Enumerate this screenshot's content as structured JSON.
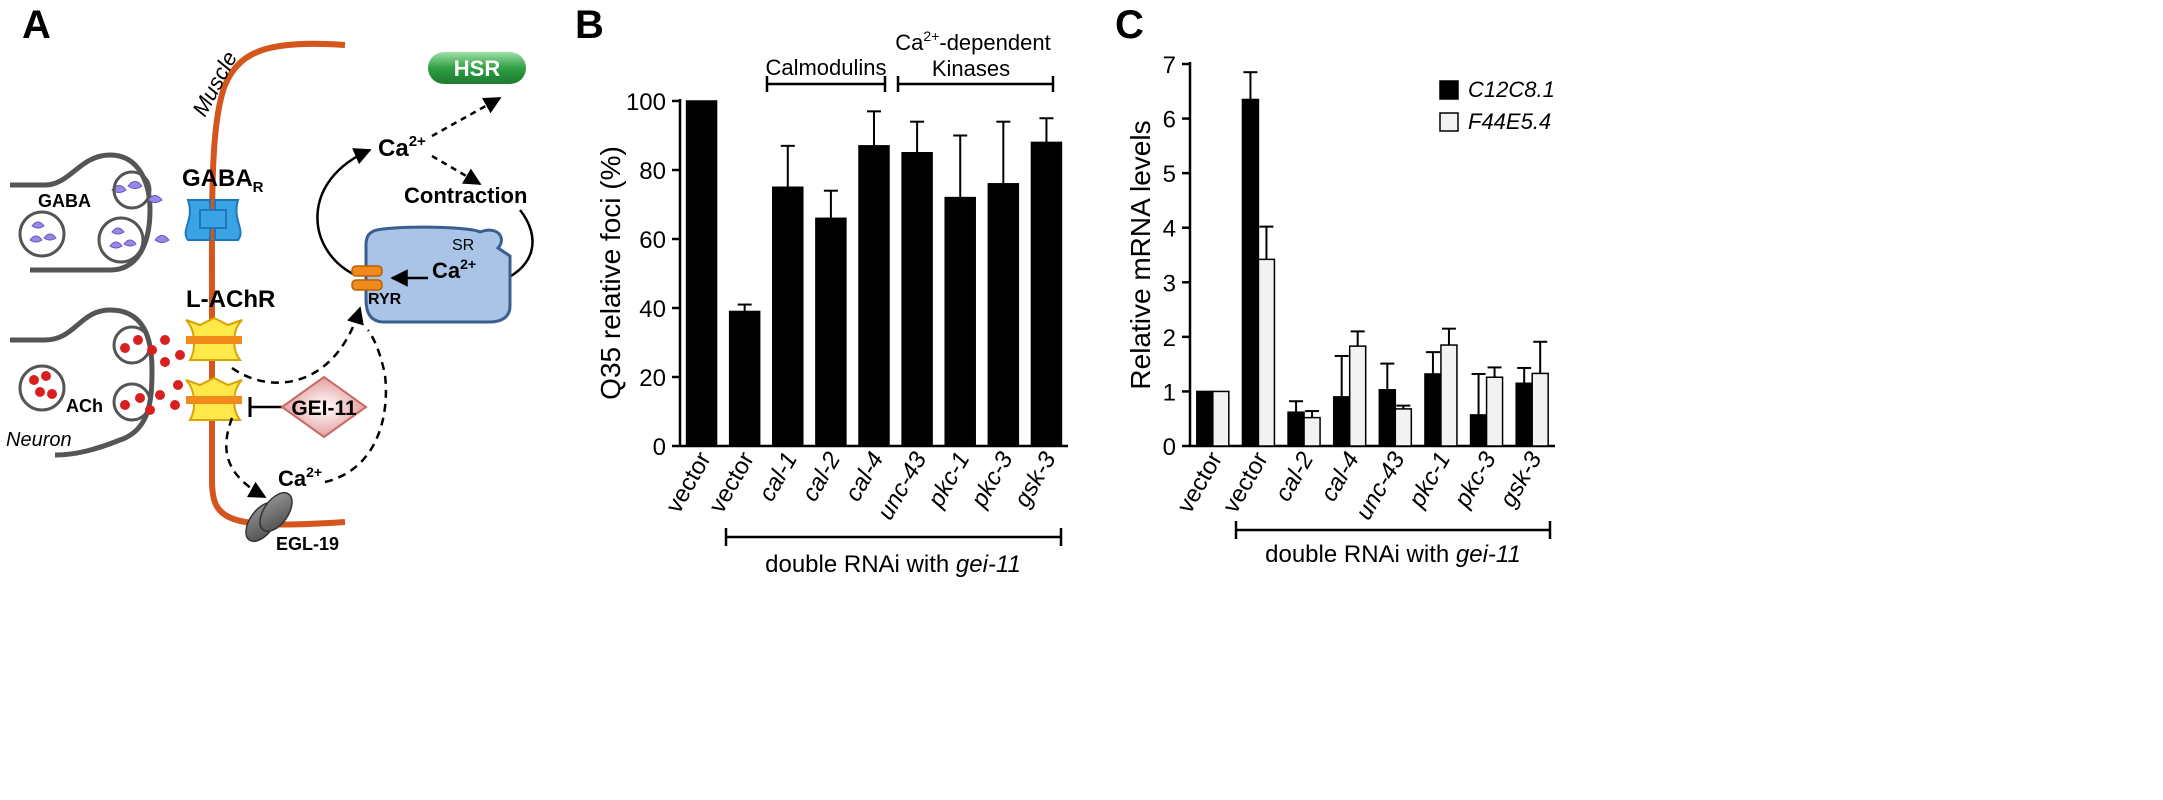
{
  "panels": {
    "A": {
      "letter": "A",
      "labels": {
        "muscle": "Muscle",
        "hsr": "HSR",
        "ca_top": "Ca",
        "ca_top_sup": "2+",
        "contraction": "Contraction",
        "gaba_r": "GABA",
        "gaba_r_sub": "R",
        "gaba": "GABA",
        "sr": "SR",
        "ca_sr": "Ca",
        "ca_sr_sup": "2+",
        "ryr": "RYR",
        "l_achr": "L-AChR",
        "gei11": "GEI-11",
        "ach": "ACh",
        "neuron": "Neuron",
        "ca_bottom": "Ca",
        "ca_bottom_sup": "2+",
        "egl19": "EGL-19"
      },
      "colors": {
        "membrane": "#d4561c",
        "hsr_fill": "#2f9e44",
        "gaba_receptor": "#3aa3e6",
        "gaba_vesicle": "#9b87e8",
        "ach_vesicle": "#d91f1f",
        "achr": "#ffe84a",
        "sr_fill": "#a9c4e6",
        "ryr": "#f08a1a",
        "gei11": "#e5a0a0"
      }
    },
    "B": {
      "letter": "B",
      "bracket_labels": {
        "calmodulins": "Calmodulins",
        "kinases_line1": "Ca",
        "kinases_sup": "2+",
        "kinases_line1_rest": "-dependent",
        "kinases_line2": "Kinases"
      },
      "bottom_bracket": {
        "prefix": "double RNAi with ",
        "gene": "gei-11"
      }
    },
    "C": {
      "letter": "C",
      "bottom_bracket": {
        "prefix": "double RNAi with ",
        "gene": "gei-11"
      }
    }
  },
  "chart_data": [
    {
      "panel": "B",
      "type": "bar",
      "ylabel": "Q35 relative foci (%)",
      "ylim": [
        0,
        100
      ],
      "yticks": [
        0,
        20,
        40,
        60,
        80,
        100
      ],
      "categories": [
        "vector",
        "vector",
        "cal-1",
        "cal-2",
        "cal-4",
        "unc-43",
        "pkc-1",
        "pkc-3",
        "gsk-3"
      ],
      "italic_categories": [
        false,
        false,
        true,
        true,
        true,
        true,
        true,
        true,
        true
      ],
      "series": [
        {
          "values": [
            100,
            39,
            75,
            66,
            87,
            85,
            72,
            76,
            88
          ],
          "errors": [
            0,
            2,
            12,
            8,
            10,
            9,
            18,
            18,
            7
          ],
          "color": "#000000"
        }
      ],
      "grid": false,
      "legend": "none"
    },
    {
      "panel": "C",
      "type": "bar",
      "ylabel": "Relative mRNA levels",
      "ylim": [
        0,
        7
      ],
      "yticks": [
        0,
        1,
        2,
        3,
        4,
        5,
        6,
        7
      ],
      "categories": [
        "vector",
        "vector",
        "cal-2",
        "cal-4",
        "unc-43",
        "pkc-1",
        "pkc-3",
        "gsk-3"
      ],
      "italic_categories": [
        false,
        false,
        true,
        true,
        true,
        true,
        true,
        true
      ],
      "series": [
        {
          "name": "C12C8.1",
          "values": [
            1.0,
            6.35,
            0.62,
            0.9,
            1.03,
            1.32,
            0.57,
            1.15
          ],
          "errors": [
            0,
            0.5,
            0.2,
            0.75,
            0.48,
            0.4,
            0.75,
            0.28
          ],
          "color": "#000000"
        },
        {
          "name": "F44E5.4",
          "values": [
            1.0,
            3.42,
            0.52,
            1.83,
            0.68,
            1.85,
            1.26,
            1.33
          ],
          "errors": [
            0,
            0.6,
            0.12,
            0.27,
            0.06,
            0.3,
            0.18,
            0.58
          ],
          "color": "#f2f2f2"
        }
      ],
      "grid": false,
      "legend": "top-right"
    }
  ]
}
